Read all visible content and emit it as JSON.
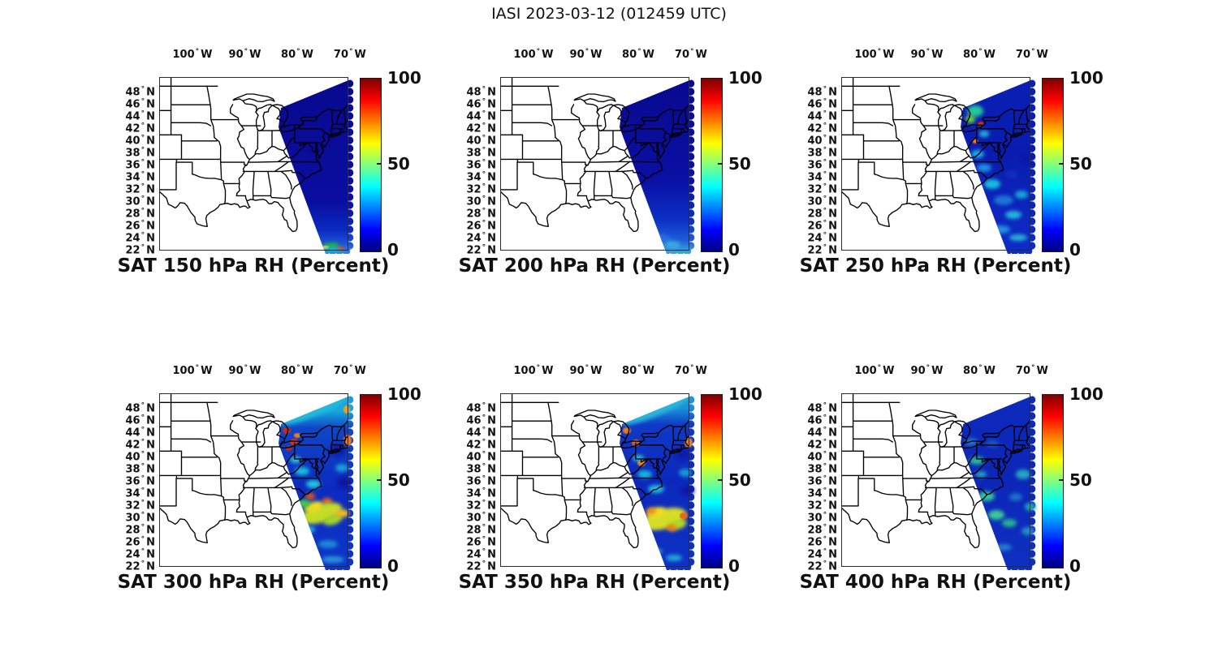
{
  "figure": {
    "title": "IASI 2023-03-12 (012459 UTC)",
    "instrument": "IASI",
    "date": "2023-03-12",
    "time_utc": "012459 UTC"
  },
  "axes": {
    "lon_ticks": [
      "100° W",
      "90° W",
      "80° W",
      "70° W"
    ],
    "lat_ticks": [
      "48° N",
      "46° N",
      "44° N",
      "42° N",
      "40° N",
      "38° N",
      "36° N",
      "34° N",
      "32° N",
      "30° N",
      "28° N",
      "26° N",
      "24° N",
      "22° N"
    ]
  },
  "colorbar": {
    "ticks": [
      "100",
      "50",
      "0"
    ],
    "min": 0,
    "max": 100,
    "colormap": "jet"
  },
  "panels": [
    {
      "id": "sat-150",
      "level_hPa": 150,
      "title": "SAT 150 hPa RH (Percent)"
    },
    {
      "id": "sat-200",
      "level_hPa": 200,
      "title": "SAT 200 hPa RH (Percent)"
    },
    {
      "id": "sat-250",
      "level_hPa": 250,
      "title": "SAT 250 hPa RH (Percent)"
    },
    {
      "id": "sat-300",
      "level_hPa": 300,
      "title": "SAT 300 hPa RH (Percent)"
    },
    {
      "id": "sat-350",
      "level_hPa": 350,
      "title": "SAT 350 hPa RH (Percent)"
    },
    {
      "id": "sat-400",
      "level_hPa": 400,
      "title": "SAT 400 hPa RH (Percent)"
    }
  ],
  "chart_data": {
    "type": "heatmap",
    "title": "IASI 2023-03-12 (012459 UTC)",
    "variable": "Relative Humidity (SAT retrieval)",
    "units": "Percent",
    "colormap": "jet",
    "colorbar_range": [
      0,
      100
    ],
    "colorbar_ticks": [
      0,
      50,
      100
    ],
    "lon_ticks_deg_w": [
      100,
      90,
      80,
      70
    ],
    "lat_ticks_deg_n": [
      48,
      46,
      44,
      42,
      40,
      38,
      36,
      34,
      32,
      30,
      28,
      26,
      24,
      22
    ],
    "map_extent": {
      "lon_deg": [
        -106.3,
        -70.3
      ],
      "lat_deg": [
        22,
        50.5
      ]
    },
    "layout": "2 rows x 3 columns of identical US East Coast maps, each with its own jet colorbar 0-100",
    "swath_geometry": "diagonal satellite swath covering New England / Mid-Atlantic coast and western Atlantic, from ~47N near the Great Lakes southeast to ~22N",
    "panels": [
      {
        "level_hPa": 150,
        "title": "SAT 150 hPa RH (Percent)",
        "swath_summary": "Uniform very dry dark-blue swath (RH ~0-10%); tiny patch of green/yellow/red (RH ~40-90%) at the extreme southern swath edge near 22N"
      },
      {
        "level_hPa": 200,
        "title": "SAT 200 hPa RH (Percent)",
        "swath_summary": "Very dry dark-blue swath (RH ~0-10%); slightly moister blue/cyan band (RH ~15-30%) at the southern end of the swath"
      },
      {
        "level_hPa": 250,
        "title": "SAT 250 hPa RH (Percent)",
        "swath_summary": "Mostly dry blue (RH ~10-25%); cyan-green patches (RH ~30-60%) along the NW swath edge near Lakes Erie/Ontario with isolated red spots (~90%); scattered cyan blobs (~35%) offshore"
      },
      {
        "level_hPa": 300,
        "title": "SAT 300 hPa RH (Percent)",
        "swath_summary": "Cyan band (~35-45%) along NW swath edge; red/orange cells (70-100%) near the Mid-Atlantic coast and off the Carolinas; yellow-green band (50-70%) across the southern offshore portion; dry blue elsewhere"
      },
      {
        "level_hPa": 350,
        "title": "SAT 350 hPa RH (Percent)",
        "swath_summary": "Blue north with orange cells (~70-85%) near Pennsylvania/New Jersey; broad yellow band (50-65%) with embedded orange across the central/southern swath; dry blue far south"
      },
      {
        "level_hPa": 400,
        "title": "SAT 400 hPa RH (Percent)",
        "swath_summary": "Moderately dry blue (~15-30%) with soft cyan-green patches (35-50%) scattered along the coast and offshore"
      }
    ]
  }
}
